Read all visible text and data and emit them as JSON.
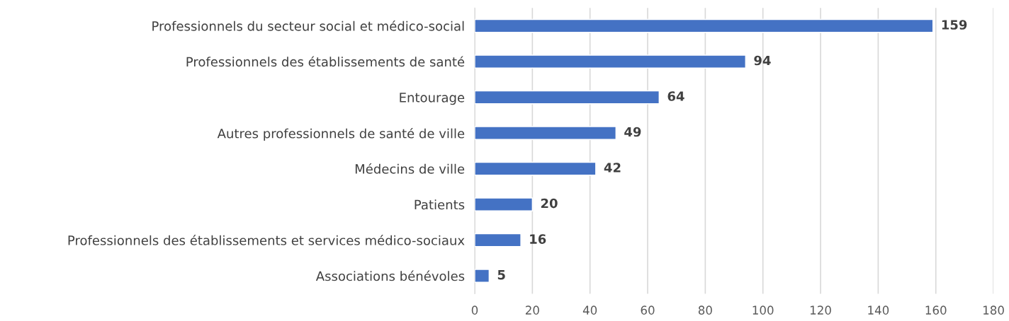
{
  "chart_data": {
    "type": "bar",
    "orientation": "horizontal",
    "categories": [
      "Professionnels du secteur social et médico-social",
      "Professionnels des établissements de santé",
      "Entourage",
      "Autres professionnels de santé de ville",
      "Médecins de ville",
      "Patients",
      "Professionnels des établissements et services médico-sociaux",
      "Associations bénévoles"
    ],
    "values": [
      159,
      94,
      64,
      49,
      42,
      20,
      16,
      5
    ],
    "color": "#4472c4",
    "data_labels": true,
    "grid": "x",
    "legend": false,
    "xlim": [
      0,
      180
    ],
    "xticks": [
      0,
      20,
      40,
      60,
      80,
      100,
      120,
      140,
      160,
      180
    ]
  }
}
